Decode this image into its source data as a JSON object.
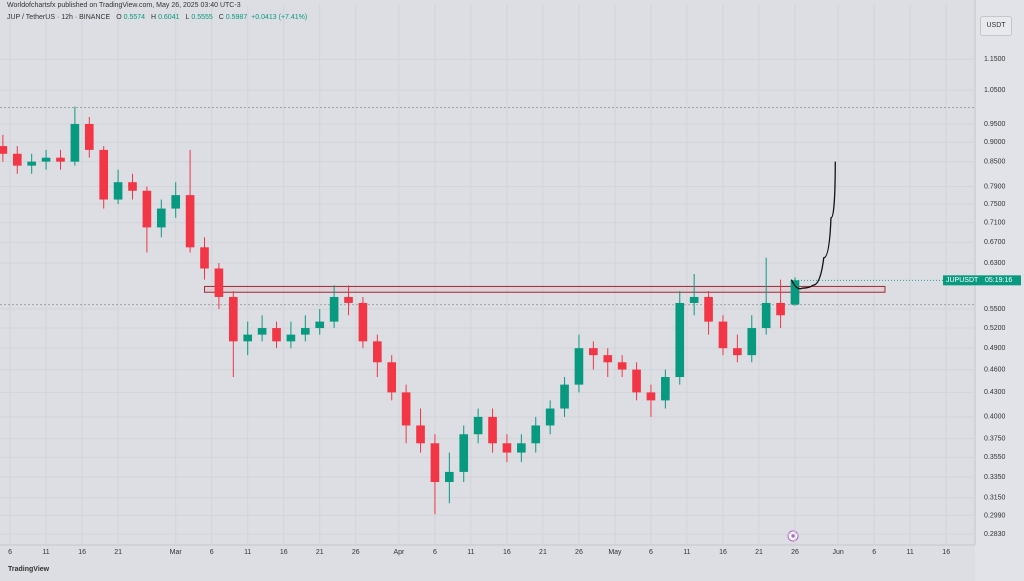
{
  "chart_data": {
    "type": "candlestick",
    "published": "Worldofchartsfx published on TradingView.com, May 26, 2025 03:40 UTC-3",
    "symbol": "JUP / TetherUS · 12h · BINANCE",
    "ohlc_labels": [
      "O",
      "H",
      "L",
      "C"
    ],
    "change": "+0.0413 (+7.41%)",
    "currency": "USDT",
    "footer": "TradingView",
    "price_label": {
      "symbol": "JUPUSDT",
      "countdown": "05:19:16"
    },
    "up_color": "#089981",
    "down_color": "#f23645",
    "log_scale": true,
    "grid": true,
    "x": [
      -1,
      1,
      3,
      5,
      7,
      9,
      11,
      13,
      15,
      17,
      19,
      21,
      23,
      25,
      27,
      29,
      31,
      33,
      35,
      37,
      39,
      41,
      43,
      45,
      47,
      49,
      51,
      53,
      55,
      57,
      59,
      61,
      63,
      65,
      67,
      69,
      71,
      73,
      75,
      77,
      79,
      81,
      83,
      85,
      87,
      89,
      91,
      93,
      95,
      97,
      99,
      101,
      103,
      105,
      107,
      109
    ],
    "open": [
      0.89,
      0.87,
      0.84,
      0.85,
      0.86,
      0.85,
      0.95,
      0.88,
      0.76,
      0.8,
      0.78,
      0.7,
      0.74,
      0.77,
      0.66,
      0.62,
      0.57,
      0.5,
      0.51,
      0.52,
      0.5,
      0.51,
      0.52,
      0.53,
      0.57,
      0.56,
      0.5,
      0.47,
      0.43,
      0.39,
      0.37,
      0.33,
      0.34,
      0.38,
      0.4,
      0.37,
      0.36,
      0.37,
      0.39,
      0.41,
      0.44,
      0.49,
      0.48,
      0.47,
      0.46,
      0.43,
      0.42,
      0.45,
      0.56,
      0.57,
      0.53,
      0.49,
      0.48,
      0.52,
      0.56,
      0.5574
    ],
    "high": [
      0.92,
      0.89,
      0.87,
      0.88,
      0.88,
      1.0,
      0.97,
      0.89,
      0.83,
      0.82,
      0.79,
      0.76,
      0.8,
      0.88,
      0.68,
      0.63,
      0.58,
      0.53,
      0.54,
      0.53,
      0.53,
      0.54,
      0.55,
      0.59,
      0.59,
      0.57,
      0.51,
      0.48,
      0.44,
      0.41,
      0.38,
      0.36,
      0.39,
      0.41,
      0.41,
      0.38,
      0.38,
      0.4,
      0.42,
      0.45,
      0.51,
      0.5,
      0.49,
      0.48,
      0.47,
      0.44,
      0.46,
      0.58,
      0.61,
      0.58,
      0.54,
      0.51,
      0.54,
      0.64,
      0.6,
      0.6041
    ],
    "low": [
      0.85,
      0.82,
      0.82,
      0.83,
      0.83,
      0.84,
      0.86,
      0.74,
      0.75,
      0.76,
      0.65,
      0.68,
      0.72,
      0.65,
      0.6,
      0.55,
      0.45,
      0.48,
      0.5,
      0.49,
      0.49,
      0.5,
      0.51,
      0.52,
      0.54,
      0.49,
      0.45,
      0.42,
      0.37,
      0.36,
      0.3,
      0.31,
      0.33,
      0.37,
      0.36,
      0.35,
      0.35,
      0.36,
      0.38,
      0.4,
      0.43,
      0.46,
      0.45,
      0.45,
      0.42,
      0.4,
      0.41,
      0.44,
      0.54,
      0.51,
      0.48,
      0.47,
      0.47,
      0.51,
      0.52,
      0.5555
    ],
    "close": [
      0.87,
      0.84,
      0.85,
      0.86,
      0.85,
      0.95,
      0.88,
      0.76,
      0.8,
      0.78,
      0.7,
      0.74,
      0.77,
      0.66,
      0.62,
      0.57,
      0.5,
      0.51,
      0.52,
      0.5,
      0.51,
      0.52,
      0.53,
      0.57,
      0.56,
      0.5,
      0.47,
      0.43,
      0.39,
      0.37,
      0.33,
      0.34,
      0.38,
      0.4,
      0.37,
      0.36,
      0.37,
      0.39,
      0.41,
      0.44,
      0.49,
      0.48,
      0.47,
      0.46,
      0.43,
      0.42,
      0.45,
      0.56,
      0.57,
      0.53,
      0.49,
      0.48,
      0.52,
      0.56,
      0.54,
      0.5987
    ],
    "zone": {
      "x": [
        27,
        121.5
      ],
      "y": [
        0.578,
        0.588
      ]
    },
    "reference_lines": [
      0.997,
      0.557
    ],
    "projection": {
      "x": [
        108.5,
        110,
        111.5,
        113,
        114,
        114.6
      ],
      "y": [
        0.6,
        0.585,
        0.59,
        0.64,
        0.72,
        0.85
      ]
    },
    "xlim": [
      -1.4,
      134
    ],
    "ylim": [
      0.274,
      1.35
    ],
    "xticks": [
      {
        "value": 0,
        "label": "6"
      },
      {
        "value": 5,
        "label": "11"
      },
      {
        "value": 10,
        "label": "16"
      },
      {
        "value": 15,
        "label": "21"
      },
      {
        "value": 23,
        "label": "Mar"
      },
      {
        "value": 28,
        "label": "6"
      },
      {
        "value": 33,
        "label": "11"
      },
      {
        "value": 38,
        "label": "16"
      },
      {
        "value": 43,
        "label": "21"
      },
      {
        "value": 48,
        "label": "26"
      },
      {
        "value": 54,
        "label": "Apr"
      },
      {
        "value": 59,
        "label": "6"
      },
      {
        "value": 64,
        "label": "11"
      },
      {
        "value": 69,
        "label": "16"
      },
      {
        "value": 74,
        "label": "21"
      },
      {
        "value": 79,
        "label": "26"
      },
      {
        "value": 84,
        "label": "May"
      },
      {
        "value": 89,
        "label": "6"
      },
      {
        "value": 94,
        "label": "11"
      },
      {
        "value": 99,
        "label": "16"
      },
      {
        "value": 104,
        "label": "21"
      },
      {
        "value": 109,
        "label": "26"
      },
      {
        "value": 115,
        "label": "Jun"
      },
      {
        "value": 120,
        "label": "6"
      },
      {
        "value": 125,
        "label": "11"
      },
      {
        "value": 130,
        "label": "16"
      }
    ],
    "yticks": [
      {
        "value": 1.15,
        "label": "1.1500"
      },
      {
        "value": 1.05,
        "label": "1.0500"
      },
      {
        "value": 0.95,
        "label": "0.9500"
      },
      {
        "value": 0.9,
        "label": "0.9000"
      },
      {
        "value": 0.85,
        "label": "0.8500"
      },
      {
        "value": 0.79,
        "label": "0.7900"
      },
      {
        "value": 0.75,
        "label": "0.7500"
      },
      {
        "value": 0.71,
        "label": "0.7100"
      },
      {
        "value": 0.67,
        "label": "0.6700"
      },
      {
        "value": 0.63,
        "label": "0.6300"
      },
      {
        "value": 0.55,
        "label": "0.5500"
      },
      {
        "value": 0.52,
        "label": "0.5200"
      },
      {
        "value": 0.49,
        "label": "0.4900"
      },
      {
        "value": 0.46,
        "label": "0.4600"
      },
      {
        "value": 0.43,
        "label": "0.4300"
      },
      {
        "value": 0.4,
        "label": "0.4000"
      },
      {
        "value": 0.375,
        "label": "0.3750"
      },
      {
        "value": 0.355,
        "label": "0.3550"
      },
      {
        "value": 0.335,
        "label": "0.3350"
      },
      {
        "value": 0.315,
        "label": "0.3150"
      },
      {
        "value": 0.299,
        "label": "0.2990"
      },
      {
        "value": 0.283,
        "label": "0.2830"
      }
    ]
  }
}
